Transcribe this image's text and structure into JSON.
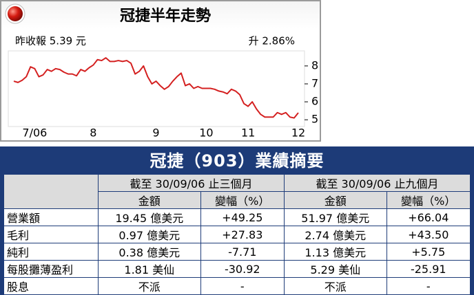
{
  "chart_data": {
    "type": "line",
    "title": "冠捷半年走勢",
    "annotations": [
      "昨收報 5.39 元",
      "升 2.86%"
    ],
    "categories": [
      null,
      null,
      null,
      null,
      null,
      "7/06",
      null,
      null,
      null,
      null,
      null,
      null,
      null,
      null,
      null,
      null,
      null,
      null,
      null,
      "8",
      null,
      null,
      null,
      null,
      null,
      null,
      null,
      null,
      null,
      null,
      null,
      null,
      null,
      null,
      "9",
      null,
      null,
      null,
      null,
      null,
      null,
      null,
      null,
      null,
      null,
      null,
      "10",
      null,
      null,
      null,
      null,
      null,
      null,
      null,
      null,
      null,
      "11",
      null,
      null,
      null,
      null,
      null,
      null,
      null,
      null,
      null,
      null,
      null,
      "12"
    ],
    "series": [
      {
        "color": "#d42020",
        "values": [
          7.15,
          7.08,
          7.2,
          7.4,
          7.95,
          7.85,
          7.4,
          7.5,
          7.8,
          7.7,
          7.85,
          7.8,
          7.65,
          7.55,
          7.55,
          7.45,
          7.8,
          7.7,
          7.9,
          8.05,
          8.35,
          8.3,
          8.45,
          8.25,
          8.25,
          8.3,
          8.25,
          8.3,
          8.15,
          7.55,
          7.7,
          8.0,
          7.4,
          7.0,
          7.15,
          6.9,
          6.7,
          6.85,
          7.15,
          7.4,
          7.6,
          6.9,
          7.0,
          6.75,
          6.85,
          6.75,
          6.75,
          6.75,
          6.7,
          6.6,
          6.55,
          6.45,
          6.7,
          6.6,
          6.4,
          5.9,
          5.75,
          6.0,
          5.6,
          5.3,
          5.15,
          5.15,
          5.15,
          5.4,
          5.3,
          5.4,
          5.15,
          5.1,
          5.39
        ]
      }
    ],
    "ylim": [
      4.7,
      8.8
    ],
    "yticks": [
      5,
      6,
      7,
      8
    ]
  },
  "table": {
    "title": "冠捷（903）業績摘要",
    "groups": [
      "截至 30/09/06 止三個月",
      "截至 30/09/06 止九個月"
    ],
    "columns": [
      "金額",
      "變幅（%）",
      "金額",
      "變幅（%）"
    ],
    "rows": [
      [
        "營業額",
        "19.45 億美元",
        "+49.25",
        "51.97 億美元",
        "+66.04"
      ],
      [
        "毛利",
        "0.97 億美元",
        "+27.83",
        "2.74 億美元",
        "+43.50"
      ],
      [
        "純利",
        "0.38 億美元",
        "-7.71",
        "1.13 億美元",
        "+5.75"
      ],
      [
        "每股攤薄盈利",
        "1.81 美仙",
        "-30.92",
        "5.29 美仙",
        "-25.91"
      ],
      [
        "股息",
        "不派",
        "-",
        "不派",
        "-"
      ]
    ]
  }
}
